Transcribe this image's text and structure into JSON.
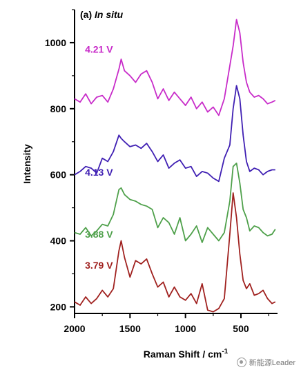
{
  "chart_data": {
    "type": "line",
    "panel_label": "(a) ",
    "panel_label_italic": "In situ",
    "xlabel": "Raman Shift / cm",
    "xlabel_sup": "-1",
    "ylabel": "Intensity",
    "xlim": [
      2000,
      170
    ],
    "ylim": [
      180,
      1100
    ],
    "xticks": [
      2000,
      1500,
      1000,
      500
    ],
    "yticks": [
      200,
      400,
      600,
      800,
      1000
    ],
    "grid": false,
    "x": [
      2000,
      1950,
      1900,
      1850,
      1800,
      1750,
      1700,
      1650,
      1600,
      1580,
      1550,
      1500,
      1450,
      1400,
      1350,
      1300,
      1250,
      1200,
      1150,
      1100,
      1050,
      1000,
      950,
      900,
      850,
      800,
      750,
      700,
      650,
      600,
      570,
      540,
      510,
      480,
      450,
      420,
      380,
      340,
      300,
      260,
      220,
      190
    ],
    "series": [
      {
        "name": "3.79 V",
        "color": "#a0211f",
        "label_xy": [
          1780,
          316
        ],
        "values": [
          215,
          205,
          230,
          210,
          225,
          250,
          230,
          255,
          370,
          400,
          350,
          290,
          340,
          330,
          345,
          300,
          260,
          275,
          230,
          260,
          230,
          220,
          240,
          210,
          270,
          190,
          185,
          195,
          225,
          420,
          545,
          470,
          360,
          280,
          255,
          270,
          235,
          240,
          250,
          225,
          210,
          215
        ]
      },
      {
        "name": "3.88 V",
        "color": "#4ea04a",
        "label_xy": [
          1780,
          410
        ],
        "values": [
          425,
          420,
          440,
          415,
          430,
          450,
          445,
          480,
          555,
          560,
          540,
          525,
          520,
          510,
          505,
          495,
          440,
          470,
          455,
          420,
          470,
          400,
          420,
          445,
          395,
          440,
          420,
          400,
          425,
          520,
          625,
          635,
          575,
          495,
          470,
          430,
          445,
          440,
          425,
          415,
          420,
          435
        ]
      },
      {
        "name": "4.13 V",
        "color": "#3f1fb3",
        "label_xy": [
          1780,
          597
        ],
        "values": [
          600,
          610,
          625,
          620,
          605,
          650,
          640,
          670,
          720,
          710,
          700,
          685,
          690,
          680,
          695,
          670,
          640,
          660,
          620,
          635,
          645,
          620,
          625,
          595,
          610,
          605,
          590,
          580,
          650,
          690,
          800,
          870,
          830,
          720,
          640,
          610,
          620,
          615,
          600,
          610,
          615,
          615
        ]
      },
      {
        "name": "4.21 V",
        "color": "#c82bc9",
        "label_xy": [
          1780,
          970
        ],
        "values": [
          830,
          820,
          845,
          815,
          835,
          840,
          820,
          860,
          920,
          950,
          915,
          900,
          880,
          905,
          915,
          880,
          830,
          860,
          825,
          850,
          830,
          810,
          835,
          800,
          820,
          790,
          805,
          780,
          830,
          930,
          990,
          1070,
          1030,
          940,
          880,
          850,
          835,
          840,
          830,
          815,
          820,
          825
        ]
      }
    ]
  },
  "watermark": {
    "text": "新能源Leader"
  }
}
